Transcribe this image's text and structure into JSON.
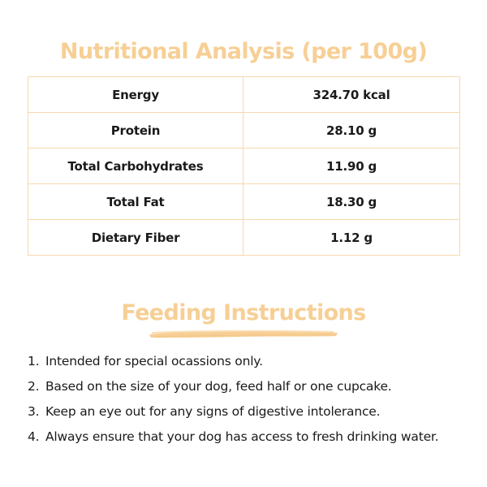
{
  "nutrition": {
    "title": "Nutritional Analysis (per 100g)",
    "rows": [
      {
        "label": "Energy",
        "value": "324.70 kcal"
      },
      {
        "label": "Protein",
        "value": "28.10 g"
      },
      {
        "label": "Total Carbohydrates",
        "value": "11.90 g"
      },
      {
        "label": "Total Fat",
        "value": "18.30 g"
      },
      {
        "label": "Dietary Fiber",
        "value": "1.12 g"
      }
    ]
  },
  "feeding": {
    "title": "Feeding Instructions",
    "items": [
      {
        "num": "1.",
        "text": "Intended for special ocassions only."
      },
      {
        "num": "2.",
        "text": "Based on the size of your dog, feed half or one cupcake."
      },
      {
        "num": "3.",
        "text": "Keep an eye out for any signs of digestive intolerance."
      },
      {
        "num": "4.",
        "text": "Always ensure that your dog has access to fresh drinking water."
      }
    ]
  },
  "colors": {
    "heading": "#f7cf95",
    "border": "#f6d9b0",
    "text": "#1a1a1a"
  }
}
